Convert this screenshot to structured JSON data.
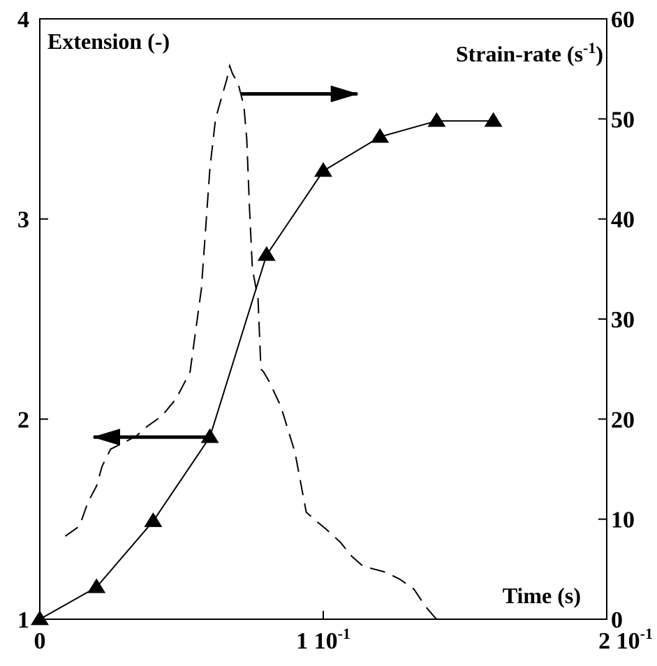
{
  "chart_data": {
    "type": "line",
    "title": "",
    "xlabel": "Time (s)",
    "ylabel_left": "Extension (-)",
    "ylabel_right": "Strain-rate (s",
    "ylabel_right_sup": "-1",
    "ylabel_right_close": ")",
    "xlim": [
      0,
      0.2
    ],
    "ylim_left": [
      1,
      4
    ],
    "ylim_right": [
      0,
      60
    ],
    "x_ticks": [
      {
        "value": 0,
        "label": "0"
      },
      {
        "value": 0.1,
        "label": "1 10",
        "sup": "-1"
      },
      {
        "value": 0.2,
        "label": "2 10",
        "sup": "-1"
      }
    ],
    "y_left_ticks": [
      {
        "value": 1,
        "label": "1"
      },
      {
        "value": 2,
        "label": "2"
      },
      {
        "value": 3,
        "label": "3"
      },
      {
        "value": 4,
        "label": "4"
      }
    ],
    "y_right_ticks": [
      {
        "value": 0,
        "label": "0"
      },
      {
        "value": 10,
        "label": "10"
      },
      {
        "value": 20,
        "label": "20"
      },
      {
        "value": 30,
        "label": "30"
      },
      {
        "value": 40,
        "label": "40"
      },
      {
        "value": 50,
        "label": "50"
      },
      {
        "value": 60,
        "label": "60"
      }
    ],
    "grid": false,
    "series": [
      {
        "axis": "left",
        "style": "solid-triangle-markers",
        "color": "#000000",
        "x": [
          0,
          0.02,
          0.04,
          0.06,
          0.08,
          0.1,
          0.12,
          0.14,
          0.16
        ],
        "y": [
          1.0,
          1.16,
          1.49,
          1.91,
          2.82,
          3.24,
          3.41,
          3.49,
          3.49
        ]
      },
      {
        "axis": "right",
        "style": "dashed",
        "color": "#000000",
        "x": [
          0.009,
          0.014,
          0.017,
          0.02,
          0.022,
          0.025,
          0.03,
          0.034,
          0.038,
          0.043,
          0.048,
          0.053,
          0.057,
          0.06,
          0.062,
          0.064,
          0.066,
          0.067,
          0.068,
          0.07,
          0.072,
          0.073,
          0.074,
          0.075,
          0.077,
          0.078,
          0.079,
          0.081,
          0.085,
          0.09,
          0.094,
          0.098,
          0.101,
          0.106,
          0.11,
          0.114,
          0.118,
          0.122,
          0.127,
          0.132,
          0.136,
          0.139,
          0.14
        ],
        "y": [
          8.3,
          9.3,
          11.7,
          13.3,
          15.3,
          17,
          17.7,
          18.3,
          19.3,
          20.3,
          22,
          24.7,
          33,
          45,
          50,
          52,
          54,
          55.3,
          54.5,
          53.5,
          51.3,
          48,
          41,
          35,
          32,
          25,
          24.7,
          23.7,
          21.3,
          16.7,
          10.7,
          9.7,
          9,
          7.7,
          6.3,
          5.3,
          5,
          4.7,
          4,
          3,
          1.3,
          0.3,
          0
        ]
      }
    ],
    "annotations": [
      {
        "type": "arrow",
        "direction": "right",
        "points_to_axis": "right",
        "x_from": 0.071,
        "x_to": 0.112,
        "y_right": 52.5
      },
      {
        "type": "arrow",
        "direction": "left",
        "points_to_axis": "left",
        "x_from": 0.061,
        "x_to": 0.019,
        "y_left": 1.91
      }
    ]
  }
}
